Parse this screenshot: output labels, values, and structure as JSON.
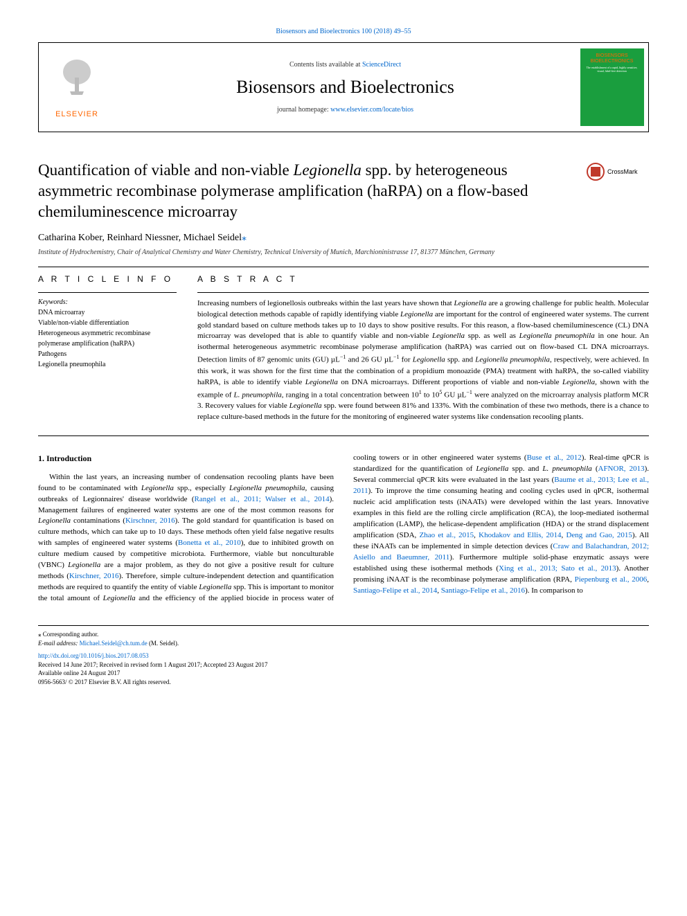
{
  "citation": "Biosensors and Bioelectronics 100 (2018) 49–55",
  "header": {
    "contents_prefix": "Contents lists available at ",
    "contents_link": "ScienceDirect",
    "journal_title": "Biosensors and Bioelectronics",
    "homepage_prefix": "journal homepage: ",
    "homepage_link": "www.elsevier.com/locate/bios",
    "publisher": "ELSEVIER",
    "cover_title": "BIOSENSORS BIOELECTRONICS"
  },
  "crossmark": "CrossMark",
  "title_parts": {
    "p1": "Quantification of viable and non-viable ",
    "p2": "Legionella",
    "p3": " spp. by heterogeneous asymmetric recombinase polymerase amplification (haRPA) on a flow-based chemiluminescence microarray"
  },
  "authors": {
    "a1": "Catharina Kober",
    "a2": "Reinhard Niessner",
    "a3": "Michael Seidel",
    "corr_mark": "⁎"
  },
  "affiliation": "Institute of Hydrochemistry, Chair of Analytical Chemistry and Water Chemistry, Technical University of Munich, Marchioninistrasse 17, 81377 München, Germany",
  "article_info_head": "A R T I C L E  I N F O",
  "abstract_head": "A B S T R A C T",
  "keywords_label": "Keywords:",
  "keywords": [
    "DNA microarray",
    "Viable/non-viable differentiation",
    "Heterogeneous asymmetric recombinase polymerase amplification (haRPA)",
    "Pathogens",
    "Legionella pneumophila"
  ],
  "abstract_html": "Increasing numbers of legionellosis outbreaks within the last years have shown that <span class='ital'>Legionella</span> are a growing challenge for public health. Molecular biological detection methods capable of rapidly identifying viable <span class='ital'>Legionella</span> are important for the control of engineered water systems. The current gold standard based on culture methods takes up to 10 days to show positive results. For this reason, a flow-based chemiluminescence (CL) DNA microarray was developed that is able to quantify viable and non-viable <span class='ital'>Legionella</span> spp. as well as <span class='ital'>Legionella pneumophila</span> in one hour. An isothermal heterogeneous asymmetric recombinase polymerase amplification (haRPA) was carried out on flow-based CL DNA microarrays. Detection limits of 87 genomic units (GU) µL<sup>−1</sup> and 26 GU µL<sup>−1</sup> for <span class='ital'>Legionella</span> spp. and <span class='ital'>Legionella pneumophila</span>, respectively, were achieved. In this work, it was shown for the first time that the combination of a propidium monoazide (PMA) treatment with haRPA, the so-called viability haRPA, is able to identify viable <span class='ital'>Legionella</span> on DNA microarrays. Different proportions of viable and non-viable <span class='ital'>Legionella</span>, shown with the example of <span class='ital'>L. pneumophila</span>, ranging in a total concentration between 10<sup>1</sup> to 10<sup>5</sup> GU µL<sup>−1</sup> were analyzed on the microarray analysis platform MCR 3. Recovery values for viable <span class='ital'>Legionella</span> spp. were found between 81% and 133%. With the combination of these two methods, there is a chance to replace culture-based methods in the future for the monitoring of engineered water systems like condensation recooling plants.",
  "intro_head": "1. Introduction",
  "intro_html": "Within the last years, an increasing number of condensation recooling plants have been found to be contaminated with <span class='ital'>Legionella</span> spp., especially <span class='ital'>Legionella pneumophila</span>, causing outbreaks of Legionnaires' disease worldwide (<a>Rangel et al., 2011; Walser et al., 2014</a>). Management failures of engineered water systems are one of the most common reasons for <span class='ital'>Legionella</span> contaminations (<a>Kirschner, 2016</a>). The gold standard for quantification is based on culture methods, which can take up to 10 days. These methods often yield false negative results with samples of engineered water systems (<a>Bonetta et al., 2010</a>), due to inhibited growth on culture medium caused by competitive microbiota. Furthermore, viable but nonculturable (VBNC) <span class='ital'>Legionella</span> are a major problem, as they do not give a positive result for culture methods (<a>Kirschner, 2016</a>). Therefore, simple culture-independent detection and quantification methods are required to quantify the entity of viable <span class='ital'>Legionella</span> spp. This is important to monitor the total amount of <span class='ital'>Legionella</span> and the efficiency of the applied biocide in process water of cooling towers or in other engineered water systems (<a>Buse et al., 2012</a>). Real-time qPCR is standardized for the quantification of <span class='ital'>Legionella</span> spp. and <span class='ital'>L. pneumophila</span> (<a>AFNOR, 2013</a>). Several commercial qPCR kits were evaluated in the last years (<a>Baume et al., 2013; Lee et al., 2011</a>). To improve the time consuming heating and cooling cycles used in qPCR, isothermal nucleic acid amplification tests (iNAATs) were developed within the last years. Innovative examples in this field are the rolling circle amplification (RCA), the loop-mediated isothermal amplification (LAMP), the helicase-dependent amplification (HDA) or the strand displacement amplification (SDA, <a>Zhao et al., 2015</a>, <a>Khodakov and Ellis, 2014</a>, <a>Deng and Gao, 2015</a>). All these iNAATs can be implemented in simple detection devices (<a>Craw and Balachandran, 2012; Asiello and Baeumner, 2011</a>). Furthermore multiple solid-phase enzymatic assays were established using these isothermal methods (<a>Xing et al., 2013; Sato et al., 2013</a>). Another promising iNAAT is the recombinase polymerase amplification (RPA, <a>Piepenburg et al., 2006</a>, <a>Santiago-Felipe et al., 2014</a>, <a>Santiago-Felipe et al., 2016</a>). In comparison to",
  "footer": {
    "corr_note": "⁎ Corresponding author.",
    "email_label": "E-mail address: ",
    "email": "Michael.Seidel@ch.tum.de",
    "email_suffix": " (M. Seidel).",
    "doi": "http://dx.doi.org/10.1016/j.bios.2017.08.053",
    "received": "Received 14 June 2017; Received in revised form 1 August 2017; Accepted 23 August 2017",
    "available": "Available online 24 August 2017",
    "copyright": "0956-5663/ © 2017 Elsevier B.V. All rights reserved."
  },
  "colors": {
    "link": "#0066cc",
    "publisher_orange": "#ff6600",
    "cover_green": "#1a9e3e",
    "crossmark_red": "#c0392b"
  }
}
